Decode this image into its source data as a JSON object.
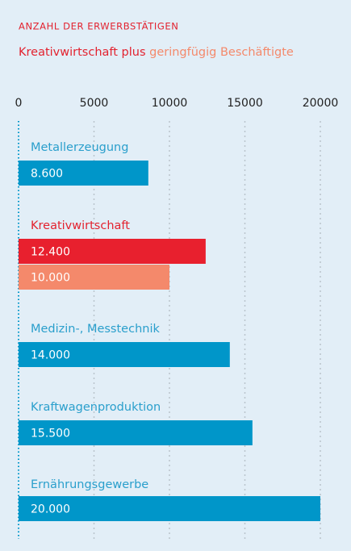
{
  "chart_data": {
    "type": "bar",
    "orientation": "horizontal",
    "title": "ANZAHL DER ERWERBSTÄTIGEN",
    "subtitle": [
      {
        "text": "Kreativwirtschaft plus",
        "color": "#e3222f"
      },
      {
        "text": "geringfügig Beschäftigte",
        "color": "#f4896b"
      }
    ],
    "categories": [
      "Metallerzeugung",
      "Kreativwirtschaft",
      "Medizin-, Messtechnik",
      "Kraftwagenproduktion",
      "Ernährungsgewerbe"
    ],
    "values": [
      8600,
      12400,
      14000,
      15500,
      20000
    ],
    "value_labels": [
      "8.600",
      "12.400",
      "14.000",
      "15.500",
      "20.000"
    ],
    "colors": [
      "#0096c9",
      "#e8202e",
      "#0096c9",
      "#0096c9",
      "#0096c9"
    ],
    "values2": [
      null,
      10000,
      null,
      null,
      null
    ],
    "value_labels2": [
      null,
      "10.000",
      null,
      null,
      null
    ],
    "color2": "#f4896b",
    "xlim": [
      0,
      20000
    ],
    "xticks": [
      0,
      5000,
      10000,
      15000,
      20000
    ],
    "grid": true
  }
}
